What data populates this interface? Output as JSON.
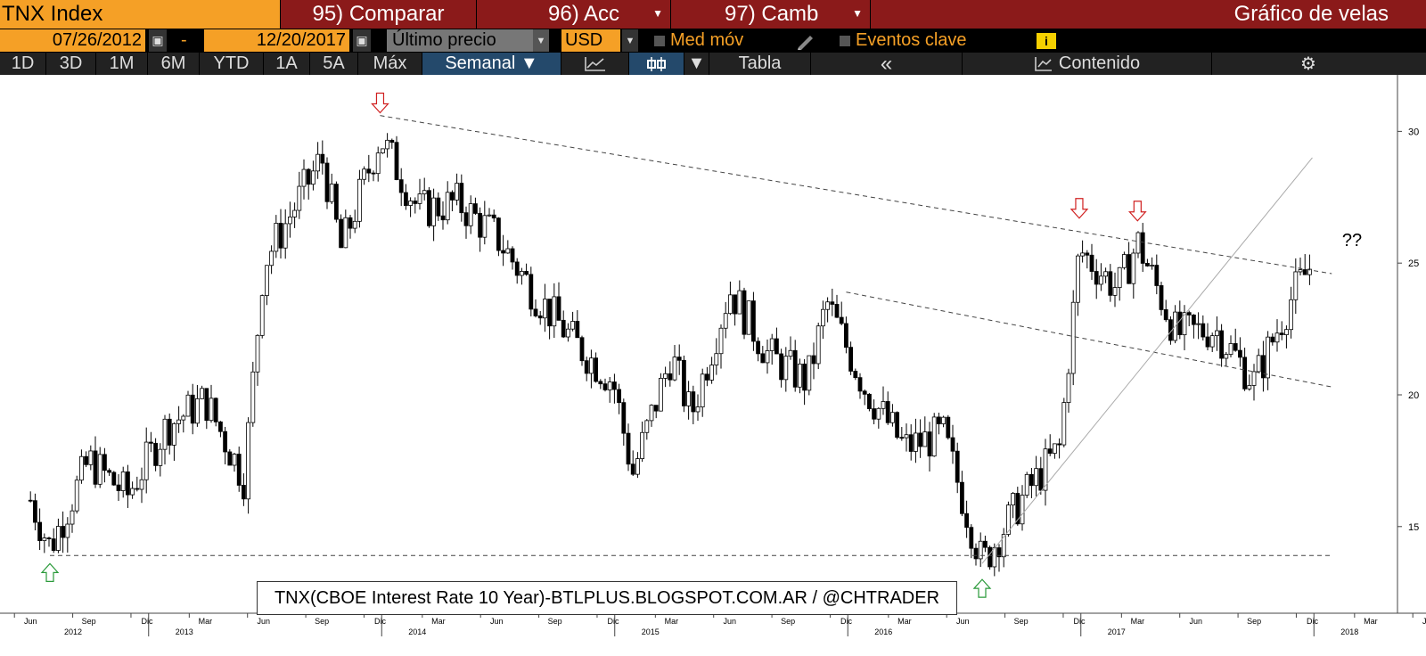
{
  "header": {
    "ticker": "TNX Index",
    "compare": "95) Comparar",
    "actions": "96) Acc",
    "change": "97) Camb",
    "title": "Gráfico de velas"
  },
  "controls": {
    "start_date": "07/26/2012",
    "separator": "-",
    "end_date": "12/20/2017",
    "price_field": "Último precio",
    "currency": "USD",
    "moving_avg_label": "Med móv",
    "key_events_label": "Eventos clave",
    "info_icon": "i"
  },
  "range_tabs": [
    {
      "label": "1D"
    },
    {
      "label": "3D"
    },
    {
      "label": "1M"
    },
    {
      "label": "6M"
    },
    {
      "label": "YTD"
    },
    {
      "label": "1A"
    },
    {
      "label": "5A"
    },
    {
      "label": "Máx"
    }
  ],
  "toolbar": {
    "period": "Semanal ▼",
    "table": "Tabla",
    "collapse": "«",
    "contents": "Contenido"
  },
  "colors": {
    "bloomberg_orange": "#f5a026",
    "header_red": "#8b1a1a",
    "active_tab_blue": "#24496b",
    "up_arrow_green": "#2a9a3a",
    "down_arrow_red": "#d02020"
  },
  "chart_data": {
    "type": "candlestick",
    "y_axis": {
      "ticks": [
        15,
        20,
        25,
        30
      ],
      "range": [
        13.2,
        31.4
      ],
      "side": "right"
    },
    "x_axis": {
      "month_labels": [
        "Jun",
        "Sep",
        "Dic",
        "Mar",
        "Jun",
        "Sep",
        "Dic",
        "Mar",
        "Jun",
        "Sep",
        "Dic",
        "Mar",
        "Jun",
        "Sep",
        "Dic",
        "Mar",
        "Jun",
        "Sep",
        "Dic",
        "Mar",
        "Jun",
        "Sep",
        "Dic",
        "Mar",
        "Jun",
        "Sep",
        "Dic"
      ],
      "year_labels": [
        "2012",
        "2013",
        "2014",
        "2015",
        "2016",
        "2017",
        "2018"
      ]
    },
    "annotation": "??",
    "caption": "TNX(CBOE Interest Rate 10 Year)-BTLPLUS.BLOGSPOT.COM.AR / @CHTRADER",
    "key_points": [
      {
        "date": "2012-07",
        "value": 14.0,
        "marker": "up-arrow"
      },
      {
        "date": "2013-12",
        "value": 30.3,
        "marker": "down-arrow"
      },
      {
        "date": "2016-07",
        "value": 13.4,
        "marker": "up-arrow"
      },
      {
        "date": "2016-12",
        "value": 26.3,
        "marker": "down-arrow"
      },
      {
        "date": "2017-03",
        "value": 26.2,
        "marker": "down-arrow"
      },
      {
        "date": "2017-12",
        "value": 25.0
      }
    ],
    "path": [
      [
        "2012-06",
        16
      ],
      [
        "2012-07",
        14.2
      ],
      [
        "2012-09",
        17.5
      ],
      [
        "2012-11",
        16.2
      ],
      [
        "2013-01",
        18.8
      ],
      [
        "2013-03",
        19.8
      ],
      [
        "2013-05",
        16.8
      ],
      [
        "2013-06",
        25.0
      ],
      [
        "2013-09",
        29.0
      ],
      [
        "2013-10",
        25.5
      ],
      [
        "2013-12",
        29.8
      ],
      [
        "2014-02",
        27.0
      ],
      [
        "2014-04",
        27.3
      ],
      [
        "2014-06",
        26.0
      ],
      [
        "2014-08",
        23.8
      ],
      [
        "2014-10",
        22.0
      ],
      [
        "2014-12",
        20.5
      ],
      [
        "2015-01",
        17.0
      ],
      [
        "2015-03",
        21.5
      ],
      [
        "2015-04",
        19.2
      ],
      [
        "2015-06",
        24.0
      ],
      [
        "2015-08",
        21.5
      ],
      [
        "2015-10",
        20.5
      ],
      [
        "2015-11",
        23.5
      ],
      [
        "2016-01",
        20.2
      ],
      [
        "2016-03",
        18.0
      ],
      [
        "2016-05",
        18.5
      ],
      [
        "2016-07",
        13.6
      ],
      [
        "2016-09",
        16.0
      ],
      [
        "2016-11",
        18.0
      ],
      [
        "2016-12",
        25.5
      ],
      [
        "2017-02",
        24.0
      ],
      [
        "2017-03",
        25.8
      ],
      [
        "2017-05",
        22.3
      ],
      [
        "2017-07",
        22.5
      ],
      [
        "2017-09",
        20.5
      ],
      [
        "2017-11",
        23.8
      ],
      [
        "2017-12",
        25.0
      ]
    ],
    "trendlines": [
      {
        "from": [
          "2013-12",
          30.6
        ],
        "to": [
          "2018-01",
          24.6
        ],
        "style": "dashed"
      },
      {
        "from": [
          "2015-12",
          23.9
        ],
        "to": [
          "2018-01",
          20.3
        ],
        "style": "dashed"
      },
      {
        "from": [
          "2012-07",
          13.9
        ],
        "to": [
          "2018-01",
          13.9
        ],
        "style": "dashed"
      },
      {
        "from": [
          "2016-07",
          13.6
        ],
        "to": [
          "2017-12",
          29.0
        ],
        "style": "solid"
      }
    ]
  }
}
